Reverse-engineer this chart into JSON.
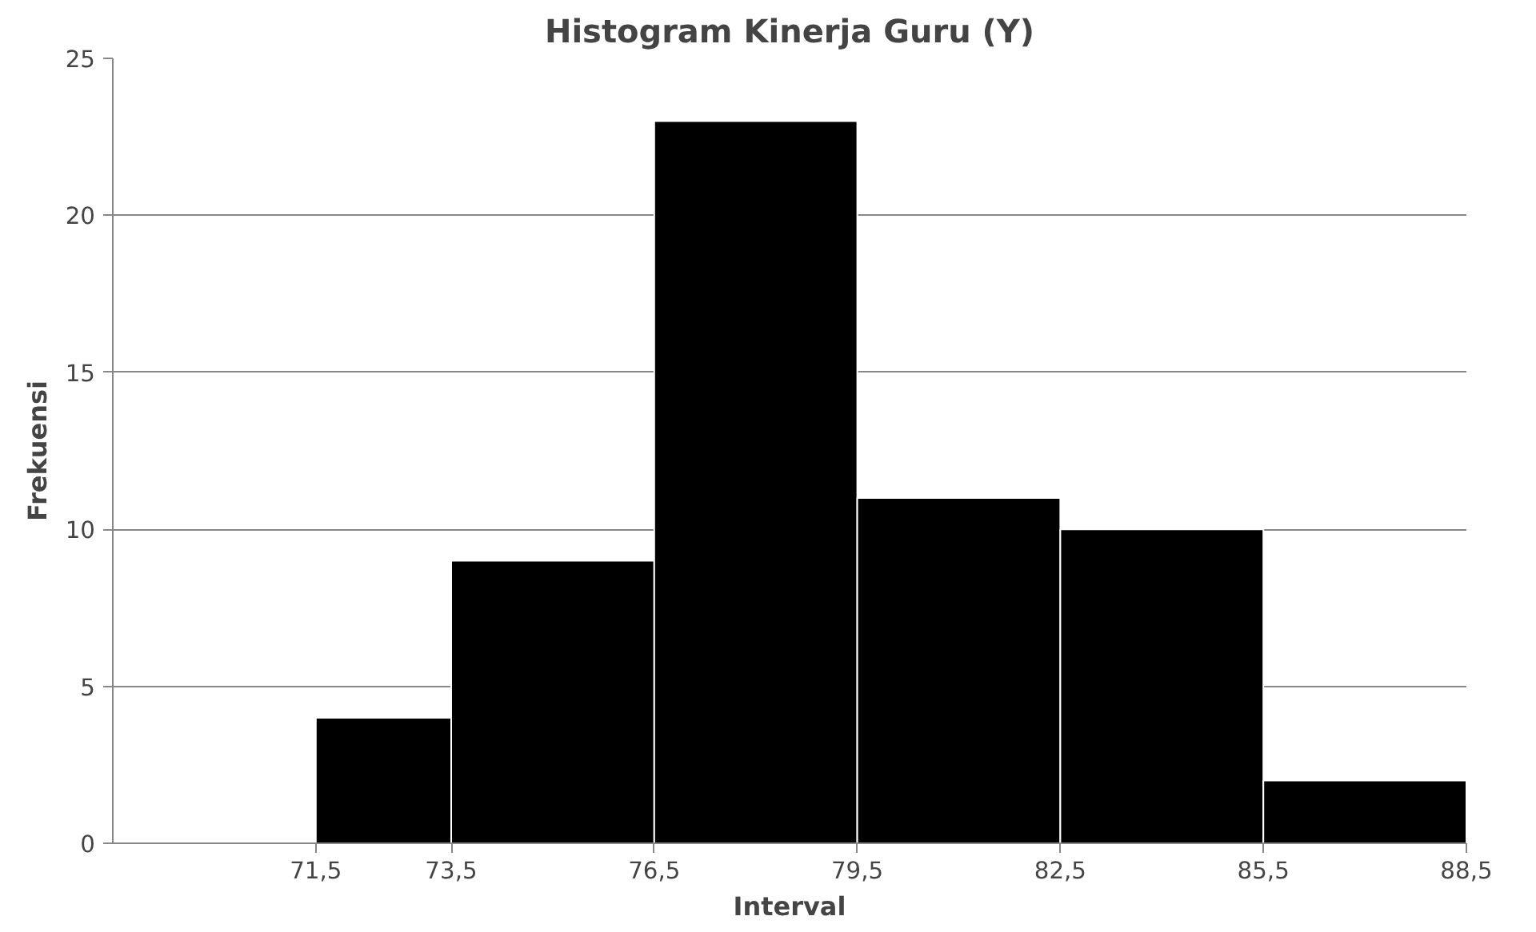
{
  "chart_data": {
    "type": "histogram",
    "title": "Histogram Kinerja Guru (Y)",
    "xlabel": "Interval",
    "ylabel": "Frekuensi",
    "bins": [
      71.5,
      73.5,
      76.5,
      79.5,
      82.5,
      85.5,
      88.5
    ],
    "values": [
      4,
      9,
      23,
      11,
      10,
      2
    ],
    "color": "#000000",
    "xlim": [
      68.5,
      88.5
    ],
    "xticks": [
      {
        "value": 71.5,
        "label": "71,5"
      },
      {
        "value": 73.5,
        "label": "73,5"
      },
      {
        "value": 76.5,
        "label": "76,5"
      },
      {
        "value": 79.5,
        "label": "79,5"
      },
      {
        "value": 82.5,
        "label": "82,5"
      },
      {
        "value": 85.5,
        "label": "85,5"
      },
      {
        "value": 88.5,
        "label": "88,5"
      }
    ],
    "ylim": [
      0,
      25
    ],
    "yticks": [
      0,
      5,
      10,
      15,
      20,
      25
    ],
    "grid": "y"
  }
}
